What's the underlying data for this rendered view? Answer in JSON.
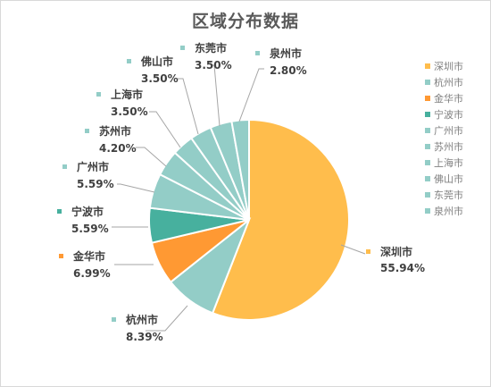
{
  "chart_data": {
    "type": "pie",
    "title": "区域分布数据",
    "legend_position": "right",
    "categories": [
      "深圳市",
      "杭州市",
      "金华市",
      "宁波市",
      "广州市",
      "苏州市",
      "上海市",
      "佛山市",
      "东莞市",
      "泉州市"
    ],
    "values": [
      55.94,
      8.39,
      6.99,
      5.59,
      5.59,
      4.2,
      3.5,
      3.5,
      3.5,
      2.8
    ],
    "labels": [
      "55.94%",
      "8.39%",
      "6.99%",
      "5.59%",
      "5.59%",
      "4.20%",
      "3.50%",
      "3.50%",
      "3.50%",
      "2.80%"
    ],
    "colors": [
      "#FFBD4C",
      "#93CDC7",
      "#FF9933",
      "#47B09E",
      "#93CDC7",
      "#93CDC7",
      "#93CDC7",
      "#93CDC7",
      "#93CDC7",
      "#93CDC7"
    ]
  }
}
